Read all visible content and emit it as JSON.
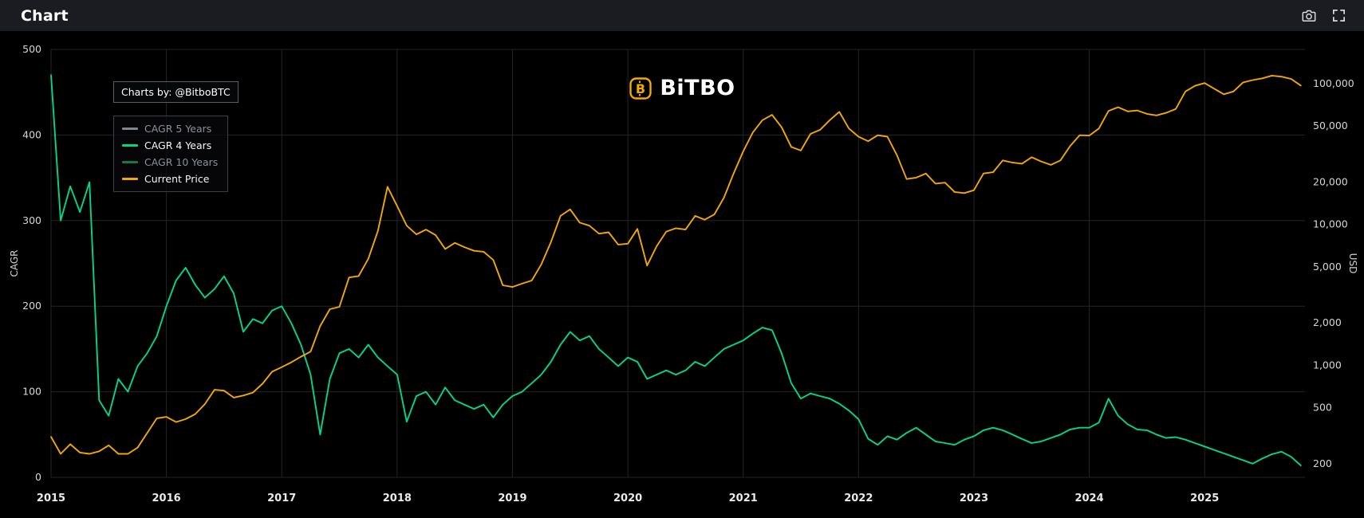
{
  "header": {
    "title": "Chart"
  },
  "chart": {
    "watermark_label": "Charts by: @BitboBTC",
    "logo_text": "BiTBO",
    "logo_color": "#f2a900",
    "background": "#000000",
    "grid_color": "#222428",
    "legend_position": "top-left",
    "legend": [
      {
        "label": "CAGR 5 Years",
        "color": "#82878f",
        "active": false
      },
      {
        "label": "CAGR 4 Years",
        "color": "#00d68f",
        "active": true
      },
      {
        "label": "CAGR 10 Years",
        "color": "#117a4a",
        "active": false
      },
      {
        "label": "Current Price",
        "color": "#f2a900",
        "active": true
      }
    ]
  },
  "chart_data": {
    "type": "line",
    "title": "",
    "grid": true,
    "x_unit": "decimal_year",
    "x_start": 2015.0,
    "x_step_months": 1,
    "x_range": [
      2015.0,
      2025.87
    ],
    "x_axis": {
      "ticks": [
        2015,
        2016,
        2017,
        2018,
        2019,
        2020,
        2021,
        2022,
        2023,
        2024,
        2025
      ]
    },
    "left_axis": {
      "label": "CAGR",
      "min": 0,
      "max": 500,
      "ticks": [
        0,
        100,
        200,
        300,
        400,
        500
      ]
    },
    "right_axis": {
      "label": "USD",
      "scale": "log",
      "min": 160,
      "max": 175000,
      "ticks": [
        200,
        500,
        1000,
        2000,
        5000,
        10000,
        20000,
        50000,
        100000
      ],
      "tick_labels": [
        "200",
        "500",
        "1,000",
        "2,000",
        "5,000",
        "10,000",
        "20,000",
        "50,000",
        "100,000"
      ]
    },
    "series": [
      {
        "name": "CAGR 4 Years",
        "axis": "left",
        "color": "#00d68f",
        "values": [
          470,
          300,
          340,
          310,
          345,
          90,
          72,
          115,
          100,
          130,
          145,
          165,
          200,
          230,
          245,
          225,
          210,
          220,
          235,
          215,
          170,
          185,
          180,
          195,
          200,
          180,
          155,
          120,
          50,
          115,
          145,
          150,
          140,
          155,
          140,
          130,
          120,
          65,
          95,
          100,
          85,
          105,
          90,
          85,
          80,
          85,
          70,
          85,
          95,
          100,
          110,
          120,
          135,
          155,
          170,
          160,
          165,
          150,
          140,
          130,
          140,
          135,
          115,
          120,
          125,
          120,
          125,
          135,
          130,
          140,
          150,
          155,
          160,
          168,
          175,
          172,
          145,
          110,
          92,
          98,
          95,
          92,
          86,
          78,
          68,
          45,
          38,
          48,
          44,
          52,
          58,
          50,
          42,
          40,
          38,
          44,
          48,
          55,
          58,
          55,
          50,
          45,
          40,
          42,
          46,
          50,
          56,
          58,
          58,
          64,
          92,
          72,
          62,
          56,
          55,
          50,
          46,
          47,
          44,
          40,
          36,
          32,
          28,
          24,
          20,
          16,
          22,
          27,
          30,
          24,
          14
        ]
      },
      {
        "name": "Current Price",
        "axis": "right",
        "color": "#f2a900",
        "values": [
          310,
          235,
          275,
          240,
          235,
          245,
          270,
          235,
          235,
          260,
          330,
          420,
          430,
          395,
          415,
          450,
          530,
          670,
          660,
          590,
          610,
          640,
          740,
          900,
          970,
          1050,
          1150,
          1250,
          1900,
          2500,
          2600,
          4200,
          4300,
          5700,
          9000,
          18500,
          13500,
          9800,
          8500,
          9200,
          8400,
          6700,
          7400,
          6900,
          6500,
          6400,
          5600,
          3700,
          3600,
          3800,
          4000,
          5200,
          7500,
          11500,
          12800,
          10300,
          9800,
          8600,
          8800,
          7200,
          7300,
          9300,
          5100,
          7000,
          8900,
          9400,
          9200,
          11500,
          10800,
          11800,
          15500,
          23000,
          33000,
          45000,
          55000,
          60000,
          49000,
          35500,
          33500,
          44000,
          47000,
          55000,
          63000,
          48000,
          42000,
          39000,
          43000,
          42000,
          31000,
          21000,
          21500,
          23000,
          19500,
          19800,
          17000,
          16700,
          17500,
          23000,
          23500,
          28500,
          27500,
          27000,
          30000,
          28000,
          26500,
          28500,
          36000,
          43000,
          42800,
          48000,
          64000,
          68000,
          63500,
          64500,
          61000,
          59500,
          62000,
          66000,
          88000,
          96500,
          101000,
          92000,
          84000,
          88000,
          102000,
          106000,
          109000,
          114000,
          112000,
          108000,
          97000
        ]
      }
    ]
  }
}
